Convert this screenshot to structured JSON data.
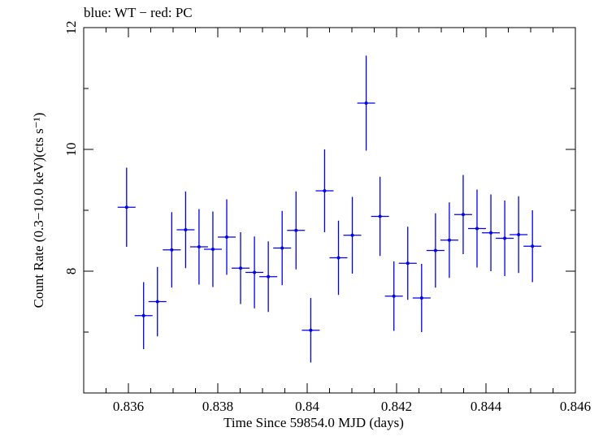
{
  "chart_data": {
    "type": "scatter",
    "title": "blue: WT − red: PC",
    "xlabel": "Time Since 59854.0 MJD (days)",
    "ylabel": "Count Rate (0.3−10.0 keV)(cts s⁻¹)",
    "xlim": [
      0.835,
      0.846
    ],
    "ylim": [
      6.0,
      12.0
    ],
    "x_ticks": [
      {
        "value": 0.836,
        "label": "0.836"
      },
      {
        "value": 0.838,
        "label": "0.838"
      },
      {
        "value": 0.84,
        "label": "0.84"
      },
      {
        "value": 0.842,
        "label": "0.842"
      },
      {
        "value": 0.844,
        "label": "0.844"
      },
      {
        "value": 0.846,
        "label": "0.846"
      }
    ],
    "y_ticks": [
      {
        "value": 8,
        "label": "8"
      },
      {
        "value": 10,
        "label": "10"
      },
      {
        "value": 12,
        "label": "12"
      }
    ],
    "grid": false,
    "series": [
      {
        "color": "#0000ee",
        "xerr": 0.0002,
        "points": [
          {
            "x": 0.83596,
            "y": 9.05,
            "yerr": 0.65
          },
          {
            "x": 0.83634,
            "y": 7.27,
            "yerr": 0.55
          },
          {
            "x": 0.83665,
            "y": 7.5,
            "yerr": 0.57
          },
          {
            "x": 0.83697,
            "y": 8.35,
            "yerr": 0.62
          },
          {
            "x": 0.83728,
            "y": 8.68,
            "yerr": 0.63
          },
          {
            "x": 0.83758,
            "y": 8.4,
            "yerr": 0.62
          },
          {
            "x": 0.83789,
            "y": 8.36,
            "yerr": 0.62
          },
          {
            "x": 0.8382,
            "y": 8.56,
            "yerr": 0.62
          },
          {
            "x": 0.83851,
            "y": 8.05,
            "yerr": 0.59
          },
          {
            "x": 0.83882,
            "y": 7.98,
            "yerr": 0.59
          },
          {
            "x": 0.83913,
            "y": 7.91,
            "yerr": 0.58
          },
          {
            "x": 0.83944,
            "y": 8.38,
            "yerr": 0.61
          },
          {
            "x": 0.83975,
            "y": 8.67,
            "yerr": 0.64
          },
          {
            "x": 0.84008,
            "y": 7.03,
            "yerr": 0.53
          },
          {
            "x": 0.84039,
            "y": 9.32,
            "yerr": 0.68
          },
          {
            "x": 0.8407,
            "y": 8.22,
            "yerr": 0.61
          },
          {
            "x": 0.84101,
            "y": 8.59,
            "yerr": 0.63
          },
          {
            "x": 0.84132,
            "y": 10.76,
            "yerr": 0.78
          },
          {
            "x": 0.84163,
            "y": 8.9,
            "yerr": 0.65
          },
          {
            "x": 0.84194,
            "y": 7.59,
            "yerr": 0.57
          },
          {
            "x": 0.84225,
            "y": 8.13,
            "yerr": 0.6
          },
          {
            "x": 0.84256,
            "y": 7.56,
            "yerr": 0.56
          },
          {
            "x": 0.84287,
            "y": 8.34,
            "yerr": 0.61
          },
          {
            "x": 0.84318,
            "y": 8.51,
            "yerr": 0.62
          },
          {
            "x": 0.84349,
            "y": 8.93,
            "yerr": 0.65
          },
          {
            "x": 0.8438,
            "y": 8.7,
            "yerr": 0.64
          },
          {
            "x": 0.84411,
            "y": 8.63,
            "yerr": 0.63
          },
          {
            "x": 0.84442,
            "y": 8.54,
            "yerr": 0.62
          },
          {
            "x": 0.84473,
            "y": 8.6,
            "yerr": 0.63
          },
          {
            "x": 0.84504,
            "y": 8.41,
            "yerr": 0.59
          }
        ]
      }
    ]
  }
}
